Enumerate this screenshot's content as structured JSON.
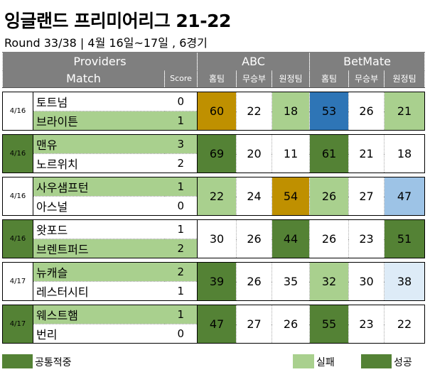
{
  "title": "잉글랜드 프리미어리그 21-22",
  "subtitle": "Round 33/38 | 4월 16일~17일 , 6경기",
  "header": {
    "providers": "Providers",
    "match": "Match",
    "score": "Score",
    "abc": "ABC",
    "betmate": "BetMate",
    "home": "홈팀",
    "draw": "무승부",
    "away": "원정팀"
  },
  "matches": [
    {
      "date": "4/16",
      "home": "토트넘",
      "away": "브라이튼",
      "home_score": "0",
      "away_score": "1",
      "abc": [
        "60",
        "22",
        "18"
      ],
      "betmate": [
        "53",
        "26",
        "21"
      ]
    },
    {
      "date": "4/16",
      "home": "맨유",
      "away": "노르위치",
      "home_score": "3",
      "away_score": "2",
      "abc": [
        "69",
        "20",
        "11"
      ],
      "betmate": [
        "61",
        "21",
        "18"
      ]
    },
    {
      "date": "4/16",
      "home": "사우샘프턴",
      "away": "아스널",
      "home_score": "1",
      "away_score": "0",
      "abc": [
        "22",
        "24",
        "54"
      ],
      "betmate": [
        "26",
        "27",
        "47"
      ]
    },
    {
      "date": "4/16",
      "home": "왓포드",
      "away": "브렌트퍼드",
      "home_score": "1",
      "away_score": "2",
      "abc": [
        "30",
        "26",
        "44"
      ],
      "betmate": [
        "26",
        "23",
        "51"
      ]
    },
    {
      "date": "4/17",
      "home": "뉴캐슬",
      "away": "레스터시티",
      "home_score": "2",
      "away_score": "1",
      "abc": [
        "39",
        "26",
        "35"
      ],
      "betmate": [
        "32",
        "30",
        "38"
      ]
    },
    {
      "date": "4/17",
      "home": "웨스트햄",
      "away": "번리",
      "home_score": "1",
      "away_score": "0",
      "abc": [
        "47",
        "27",
        "26"
      ],
      "betmate": [
        "55",
        "23",
        "22"
      ]
    }
  ],
  "legend": {
    "common": "공통적중",
    "fail": "실패",
    "success": "성공"
  },
  "colors": {
    "header_gray": "#7f7f7f",
    "dark_green": "#548235",
    "light_green": "#a9d08e",
    "gold": "#bf9000",
    "blue": "#2e75b6",
    "light_blue": "#9dc3e6",
    "pale_blue": "#ddebf7"
  }
}
